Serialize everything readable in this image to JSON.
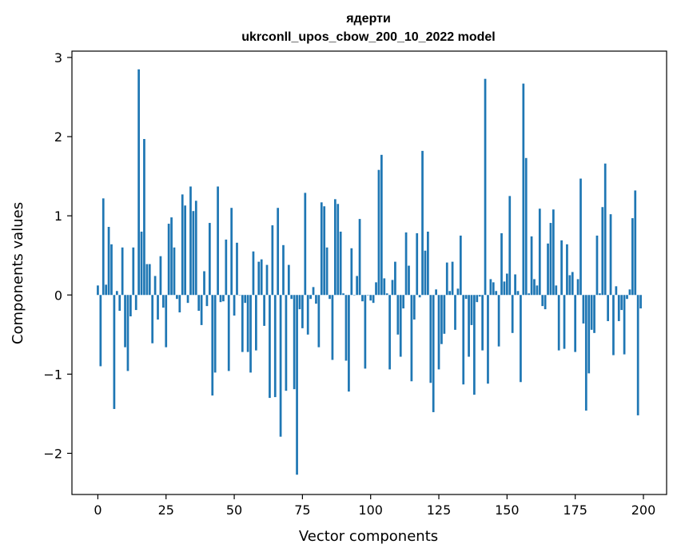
{
  "chart_data": {
    "type": "bar",
    "title": "ядерти",
    "subtitle": "ukrconll_upos_cbow_200_10_2022 model",
    "xlabel": "Vector components",
    "ylabel": "Components values",
    "xlim": [
      -9.5,
      208.5
    ],
    "ylim": [
      -2.52,
      3.08
    ],
    "xticks": [
      0,
      25,
      50,
      75,
      100,
      125,
      150,
      175,
      200
    ],
    "yticks": [
      -2,
      -1,
      0,
      1,
      2,
      3
    ],
    "ytick_labels": [
      "−2",
      "−1",
      "0",
      "1",
      "2",
      "3"
    ],
    "bar_color": "#1f77b4",
    "grid": false,
    "legend": "none",
    "values": [
      0.12,
      -0.9,
      1.22,
      0.13,
      0.86,
      0.64,
      -1.44,
      0.05,
      -0.2,
      0.6,
      -0.66,
      -0.96,
      -0.27,
      0.6,
      -0.19,
      2.85,
      0.8,
      1.97,
      0.39,
      0.39,
      -0.61,
      0.24,
      -0.31,
      0.49,
      -0.16,
      -0.66,
      0.9,
      0.98,
      0.6,
      -0.05,
      -0.22,
      1.27,
      1.13,
      -0.1,
      1.37,
      1.06,
      1.19,
      -0.2,
      -0.38,
      0.3,
      -0.14,
      0.91,
      -1.27,
      -0.98,
      1.37,
      -0.09,
      -0.08,
      0.7,
      -0.96,
      1.1,
      -0.26,
      0.66,
      0.0,
      -0.72,
      -0.1,
      -0.72,
      -0.98,
      0.55,
      -0.7,
      0.42,
      0.45,
      -0.39,
      0.38,
      -1.3,
      0.88,
      -1.29,
      1.1,
      -1.79,
      0.63,
      -1.21,
      0.38,
      -0.05,
      -1.19,
      -2.27,
      -0.18,
      -0.42,
      1.29,
      -0.5,
      -0.05,
      0.1,
      -0.11,
      -0.66,
      1.17,
      1.12,
      0.6,
      -0.05,
      -0.82,
      1.21,
      1.15,
      0.8,
      0.02,
      -0.83,
      -1.22,
      0.59,
      0.0,
      0.24,
      0.96,
      -0.08,
      -0.93,
      0.0,
      -0.07,
      -0.1,
      0.16,
      1.58,
      1.77,
      0.21,
      0.02,
      -0.94,
      0.19,
      0.42,
      -0.5,
      -0.78,
      -0.17,
      0.79,
      0.37,
      -1.09,
      -0.31,
      0.78,
      -0.03,
      1.82,
      0.56,
      0.8,
      -1.11,
      -1.48,
      0.07,
      -0.94,
      -0.62,
      -0.49,
      0.41,
      0.05,
      0.42,
      -0.44,
      0.08,
      0.75,
      -1.13,
      -0.05,
      -0.78,
      -0.38,
      -1.26,
      -0.09,
      -0.02,
      -0.7,
      2.73,
      -1.12,
      0.2,
      0.16,
      0.05,
      -0.65,
      0.78,
      0.17,
      0.27,
      1.25,
      -0.48,
      0.26,
      0.05,
      -1.1,
      2.67,
      1.73,
      0.02,
      0.74,
      0.2,
      0.12,
      1.09,
      -0.14,
      -0.18,
      0.65,
      0.91,
      1.08,
      0.12,
      -0.7,
      0.69,
      -0.68,
      0.64,
      0.25,
      0.29,
      -0.72,
      0.2,
      1.47,
      -0.36,
      -1.46,
      -0.99,
      -0.44,
      -0.48,
      0.75,
      0.02,
      1.11,
      1.66,
      -0.33,
      1.02,
      -0.76,
      0.11,
      -0.33,
      -0.19,
      -0.75,
      -0.05,
      0.07,
      0.97,
      1.32,
      -1.52,
      -0.17
    ]
  }
}
